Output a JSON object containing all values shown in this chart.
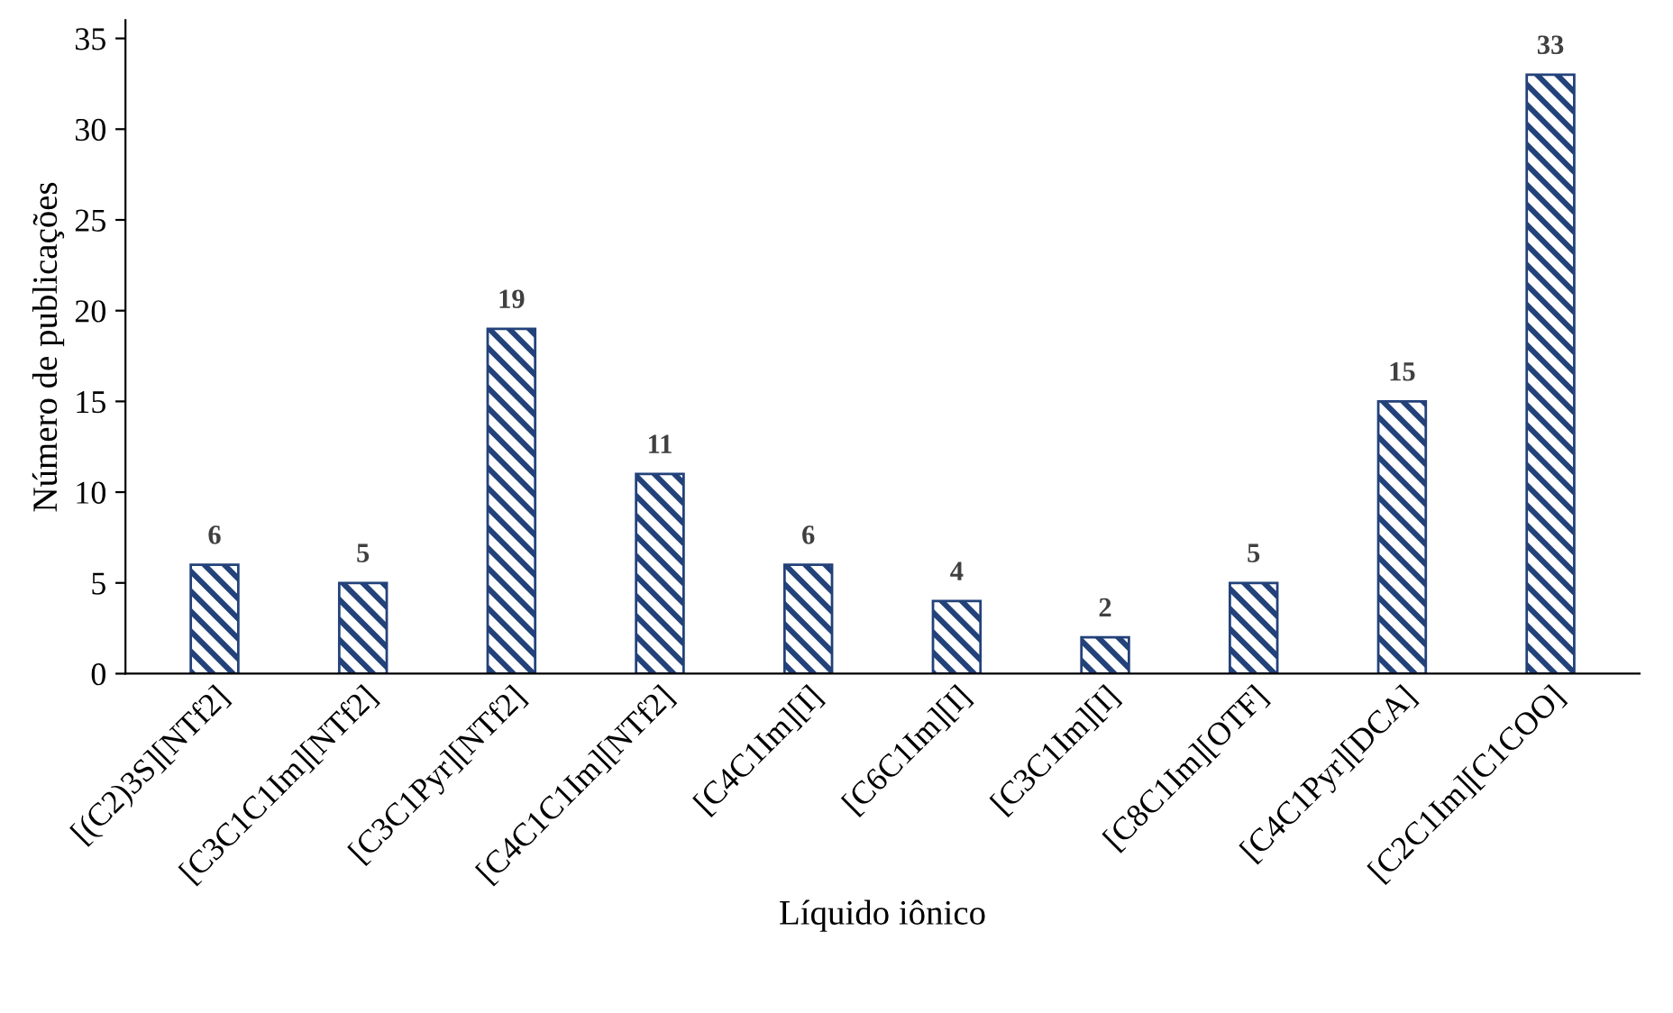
{
  "chart_data": {
    "type": "bar",
    "xlabel": "Líquido iônico",
    "ylabel": "Número de publicações",
    "categories": [
      "[(C2)3S][NTf2]",
      "[C3C1C1Im][NTf2]",
      "[C3C1Pyr][NTf2]",
      "[C4C1C1Im][NTf2]",
      "[C4C1Im][I]",
      "[C6C1Im][I]",
      "[C3C1Im][I]",
      "[C8C1Im][OTF]",
      "[C4C1Pyr][DCA]",
      "[C2C1Im][C1COO]"
    ],
    "values": [
      6,
      5,
      19,
      11,
      6,
      4,
      2,
      5,
      15,
      33
    ],
    "color": "#23427a",
    "ylim": [
      0,
      36
    ],
    "yticks": [
      0,
      5,
      10,
      15,
      20,
      25,
      30,
      35
    ],
    "data_labels": true,
    "grid": false,
    "legend": false
  }
}
